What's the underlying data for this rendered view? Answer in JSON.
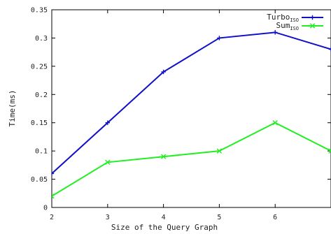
{
  "chart_data": {
    "type": "line",
    "x": [
      2,
      3,
      4,
      5,
      6,
      7
    ],
    "xticks": [
      "2",
      "3",
      "4",
      "5",
      "6"
    ],
    "yticks": [
      "0",
      "0.05",
      "0.1",
      "0.15",
      "0.2",
      "0.25",
      "0.3",
      "0.35"
    ],
    "xlim": [
      2,
      7
    ],
    "ylim": [
      0,
      0.35
    ],
    "xlabel": "Size of the Query Graph",
    "ylabel": "Time(ms)",
    "legend_position": "top-right",
    "grid": false,
    "series": [
      {
        "name": "Turbo",
        "name_sub": "ISO",
        "color": "#1010c8",
        "marker": "plus",
        "values": [
          0.06,
          0.15,
          0.24,
          0.3,
          0.31,
          0.28
        ]
      },
      {
        "name": "Sum",
        "name_sub": "ISO",
        "color": "#22ee22",
        "marker": "x",
        "values": [
          0.02,
          0.08,
          0.09,
          0.1,
          0.15,
          0.1
        ]
      }
    ]
  }
}
